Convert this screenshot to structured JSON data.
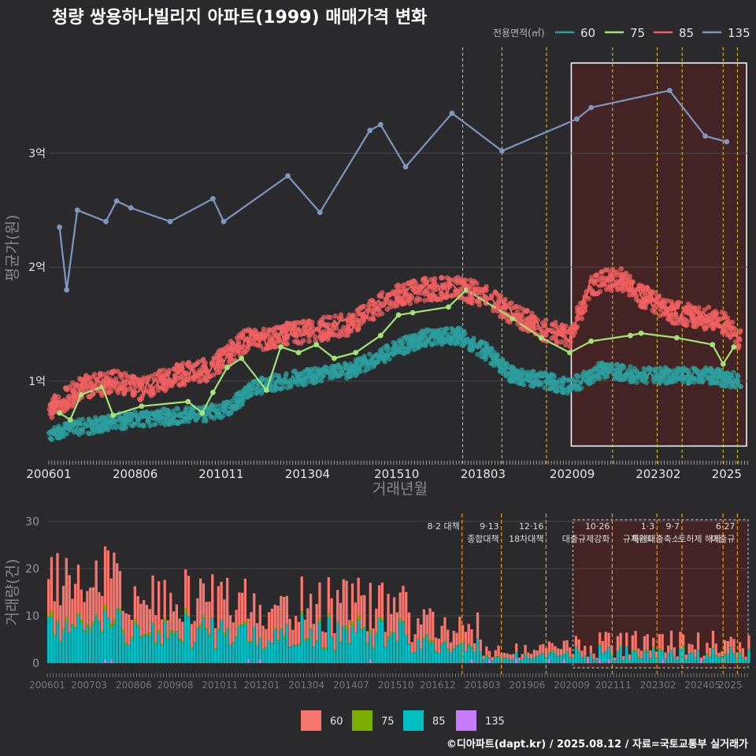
{
  "title": "청량 쌍용하나빌리지 아파트(1999) 매매가격 변화",
  "credit": "©디아파트(dapt.kr) / 2025.08.12 / 자료=국토교통부 실거래가",
  "colors": {
    "bg": "#2a2a2c",
    "grid": "#4a4a4c",
    "s60": "#2c9e9e",
    "s75": "#a5e37a",
    "s85": "#f06060",
    "s135": "#7f96bf",
    "vline": "#e0d020",
    "vline_orange": "#e0a020",
    "highlight": "#4a2222",
    "bar60": "#f8766d",
    "bar75": "#7cae00",
    "bar85": "#00bfc4",
    "bar135": "#c77cff"
  },
  "chart_data": [
    {
      "type": "line",
      "title": "청량 쌍용하나빌리지 아파트(1999) 매매가격 변화",
      "xlabel": "거래년월",
      "ylabel": "평균가(원)",
      "x_ticks": [
        "200601",
        "200806",
        "201011",
        "201304",
        "201510",
        "201803",
        "202009",
        "202302",
        "2025"
      ],
      "x_tick_values": [
        2006.0,
        2008.42,
        2010.83,
        2013.25,
        2015.75,
        2018.17,
        2020.67,
        2023.08,
        2025.0
      ],
      "y_ticks": [
        "1억",
        "2억",
        "3억"
      ],
      "y_tick_values": [
        1.0,
        2.0,
        3.0
      ],
      "xlim": [
        2006.0,
        2025.6
      ],
      "ylim": [
        0.35,
        3.95
      ],
      "legend_title": "전용면적(㎡)",
      "legend_position": "top-right",
      "series": [
        {
          "name": "60",
          "points": [
            [
              2006.0,
              0.55
            ],
            [
              2007.0,
              0.6
            ],
            [
              2008.0,
              0.65
            ],
            [
              2009.0,
              0.68
            ],
            [
              2010.0,
              0.7
            ],
            [
              2011.0,
              0.75
            ],
            [
              2011.8,
              0.95
            ],
            [
              2012.5,
              1.0
            ],
            [
              2013.5,
              1.05
            ],
            [
              2014.5,
              1.1
            ],
            [
              2015.5,
              1.25
            ],
            [
              2016.5,
              1.38
            ],
            [
              2017.5,
              1.4
            ],
            [
              2018.3,
              1.25
            ],
            [
              2019.0,
              1.05
            ],
            [
              2020.0,
              1.0
            ],
            [
              2020.6,
              0.95
            ],
            [
              2021.5,
              1.1
            ],
            [
              2022.5,
              1.05
            ],
            [
              2023.5,
              1.05
            ],
            [
              2024.5,
              1.05
            ],
            [
              2025.4,
              1.0
            ]
          ]
        },
        {
          "name": "75",
          "points": [
            [
              2006.3,
              0.72
            ],
            [
              2006.6,
              0.66
            ],
            [
              2006.9,
              0.88
            ],
            [
              2007.5,
              0.95
            ],
            [
              2007.8,
              0.7
            ],
            [
              2008.6,
              0.78
            ],
            [
              2009.9,
              0.82
            ],
            [
              2010.3,
              0.72
            ],
            [
              2010.6,
              0.9
            ],
            [
              2011.0,
              1.12
            ],
            [
              2011.4,
              1.2
            ],
            [
              2012.1,
              0.92
            ],
            [
              2012.5,
              1.3
            ],
            [
              2013.0,
              1.25
            ],
            [
              2013.5,
              1.32
            ],
            [
              2014.0,
              1.2
            ],
            [
              2014.6,
              1.25
            ],
            [
              2015.3,
              1.4
            ],
            [
              2015.8,
              1.58
            ],
            [
              2016.2,
              1.6
            ],
            [
              2017.2,
              1.65
            ],
            [
              2017.7,
              1.8
            ],
            [
              2019.0,
              1.55
            ],
            [
              2019.8,
              1.38
            ],
            [
              2020.6,
              1.25
            ],
            [
              2021.2,
              1.35
            ],
            [
              2022.3,
              1.4
            ],
            [
              2022.6,
              1.42
            ],
            [
              2023.6,
              1.38
            ],
            [
              2024.6,
              1.32
            ],
            [
              2024.9,
              1.15
            ],
            [
              2025.2,
              1.3
            ]
          ]
        },
        {
          "name": "85",
          "points": [
            [
              2006.0,
              0.75
            ],
            [
              2007.0,
              0.95
            ],
            [
              2008.0,
              1.0
            ],
            [
              2008.6,
              0.92
            ],
            [
              2009.5,
              1.05
            ],
            [
              2010.5,
              1.1
            ],
            [
              2011.5,
              1.35
            ],
            [
              2012.5,
              1.4
            ],
            [
              2013.5,
              1.45
            ],
            [
              2014.5,
              1.5
            ],
            [
              2015.5,
              1.72
            ],
            [
              2016.5,
              1.8
            ],
            [
              2017.5,
              1.82
            ],
            [
              2018.2,
              1.75
            ],
            [
              2019.0,
              1.6
            ],
            [
              2019.8,
              1.45
            ],
            [
              2020.6,
              1.38
            ],
            [
              2021.2,
              1.85
            ],
            [
              2022.0,
              1.9
            ],
            [
              2022.6,
              1.75
            ],
            [
              2023.5,
              1.6
            ],
            [
              2024.5,
              1.55
            ],
            [
              2025.0,
              1.5
            ],
            [
              2025.4,
              1.35
            ]
          ]
        },
        {
          "name": "135",
          "points": [
            [
              2006.3,
              2.35
            ],
            [
              2006.5,
              1.8
            ],
            [
              2006.8,
              2.5
            ],
            [
              2007.6,
              2.4
            ],
            [
              2007.9,
              2.58
            ],
            [
              2008.3,
              2.52
            ],
            [
              2009.4,
              2.4
            ],
            [
              2010.6,
              2.6
            ],
            [
              2010.9,
              2.4
            ],
            [
              2012.7,
              2.8
            ],
            [
              2013.6,
              2.48
            ],
            [
              2015.0,
              3.2
            ],
            [
              2015.3,
              3.25
            ],
            [
              2016.0,
              2.88
            ],
            [
              2017.3,
              3.35
            ],
            [
              2018.7,
              3.02
            ],
            [
              2020.8,
              3.3
            ],
            [
              2021.2,
              3.4
            ],
            [
              2023.4,
              3.55
            ],
            [
              2024.4,
              3.15
            ],
            [
              2025.0,
              3.1
            ]
          ]
        }
      ],
      "highlight_range": [
        2020.6,
        2025.6
      ],
      "dashed_lines": [
        2017.6,
        2018.7,
        2019.95,
        2021.8,
        2023.05,
        2023.75,
        2024.9,
        2025.3
      ]
    },
    {
      "type": "bar",
      "ylabel": "거래량(건)",
      "y_ticks": [
        "0",
        "10",
        "20",
        "30"
      ],
      "y_tick_values": [
        0,
        10,
        20,
        30
      ],
      "ylim": [
        -1,
        31
      ],
      "x_ticks": [
        "200601",
        "200703",
        "200806",
        "200908",
        "201011",
        "201201",
        "201304",
        "201407",
        "201510",
        "201612",
        "201803",
        "201906",
        "202009",
        "202111",
        "202302",
        "202405",
        "2025"
      ],
      "legend_position": "bottom",
      "legend": [
        "60",
        "75",
        "85",
        "135"
      ],
      "series_note": "stacked monthly transaction counts by area (60/75/85/135)",
      "policy_lines": [
        {
          "x": 2017.6,
          "label1": "8·2 대책",
          "label2": ""
        },
        {
          "x": 2018.7,
          "label1": "9·13",
          "label2": "종합대책"
        },
        {
          "x": 2019.95,
          "label1": "12·16",
          "label2": "18차대책"
        },
        {
          "x": 2021.8,
          "label1": "10·26",
          "label2": "대출규제강화"
        },
        {
          "x": 2023.05,
          "label1": "1·3",
          "label2": "규제완화"
        },
        {
          "x": 2023.75,
          "label1": "9·7",
          "label2": "특례대출축소"
        },
        {
          "x": 2024.9,
          "label1": "",
          "label2": "토허제 해제"
        },
        {
          "x": 2025.3,
          "label1": "6·27",
          "label2": "대출규"
        }
      ]
    }
  ]
}
